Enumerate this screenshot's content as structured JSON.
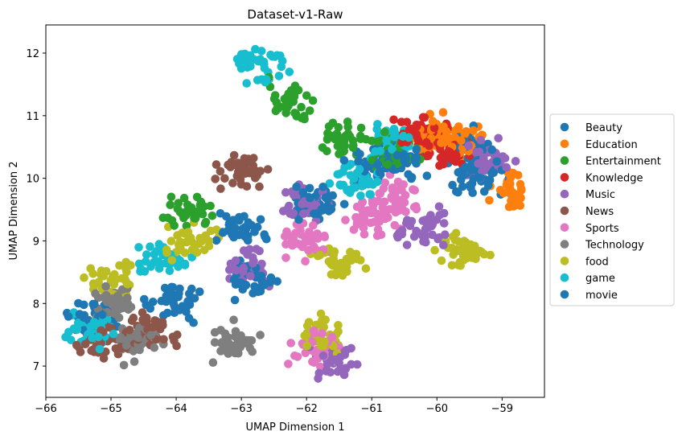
{
  "chart_data": {
    "type": "scatter",
    "title": "Dataset-v1-Raw",
    "xlabel": "UMAP Dimension 1",
    "ylabel": "UMAP Dimension 2",
    "xlim": [
      -66.0,
      -58.35
    ],
    "ylim": [
      6.5,
      12.45
    ],
    "xticks": [
      -66,
      -65,
      -64,
      -63,
      -62,
      -61,
      -60,
      -59
    ],
    "yticks": [
      7,
      8,
      9,
      10,
      11,
      12
    ],
    "grid": false,
    "legend_position": "center-right",
    "series": [
      {
        "name": "Beauty",
        "color": "#1f77b4",
        "centers": [
          [
            -60.5,
            10.3
          ],
          [
            -61.8,
            9.6
          ],
          [
            -64.0,
            8.0
          ],
          [
            -59.5,
            10.5
          ],
          [
            -62.8,
            8.4
          ]
        ]
      },
      {
        "name": "Education",
        "color": "#ff7f0e",
        "centers": [
          [
            -59.6,
            10.6
          ],
          [
            -60.0,
            10.7
          ],
          [
            -58.8,
            9.8
          ]
        ]
      },
      {
        "name": "Entertainment",
        "color": "#2ca02c",
        "centers": [
          [
            -62.3,
            11.25
          ],
          [
            -61.5,
            10.6
          ],
          [
            -60.7,
            10.4
          ],
          [
            -63.8,
            9.5
          ]
        ]
      },
      {
        "name": "Knowledge",
        "color": "#d62728",
        "centers": [
          [
            -60.2,
            10.7
          ],
          [
            -59.9,
            10.4
          ]
        ]
      },
      {
        "name": "Music",
        "color": "#9467bd",
        "centers": [
          [
            -59.2,
            10.3
          ],
          [
            -60.2,
            9.2
          ],
          [
            -62.0,
            9.6
          ],
          [
            -61.6,
            7.1
          ],
          [
            -62.9,
            8.6
          ]
        ]
      },
      {
        "name": "News",
        "color": "#8c564b",
        "centers": [
          [
            -65.2,
            7.4
          ],
          [
            -64.4,
            7.6
          ],
          [
            -63.0,
            10.1
          ]
        ]
      },
      {
        "name": "Sports",
        "color": "#e377c2",
        "centers": [
          [
            -61.0,
            9.4
          ],
          [
            -62.0,
            9.0
          ],
          [
            -61.8,
            7.3
          ],
          [
            -60.6,
            9.7
          ]
        ]
      },
      {
        "name": "Technology",
        "color": "#7f7f7f",
        "centers": [
          [
            -64.6,
            7.4
          ],
          [
            -63.2,
            7.4
          ],
          [
            -65.0,
            8.0
          ]
        ]
      },
      {
        "name": "food",
        "color": "#bcbd22",
        "centers": [
          [
            -63.8,
            9.0
          ],
          [
            -59.6,
            8.8
          ],
          [
            -61.5,
            8.7
          ],
          [
            -65.0,
            8.4
          ],
          [
            -61.8,
            7.5
          ]
        ]
      },
      {
        "name": "game",
        "color": "#17becf",
        "centers": [
          [
            -65.3,
            7.6
          ],
          [
            -62.7,
            11.8
          ],
          [
            -60.7,
            10.6
          ],
          [
            -61.2,
            10.0
          ],
          [
            -64.2,
            8.7
          ]
        ]
      },
      {
        "name": "movie",
        "color": "#1f77b4",
        "centers": [
          [
            -61.0,
            10.2
          ],
          [
            -59.4,
            10.0
          ],
          [
            -63.0,
            9.2
          ],
          [
            -65.3,
            7.8
          ]
        ]
      }
    ]
  }
}
